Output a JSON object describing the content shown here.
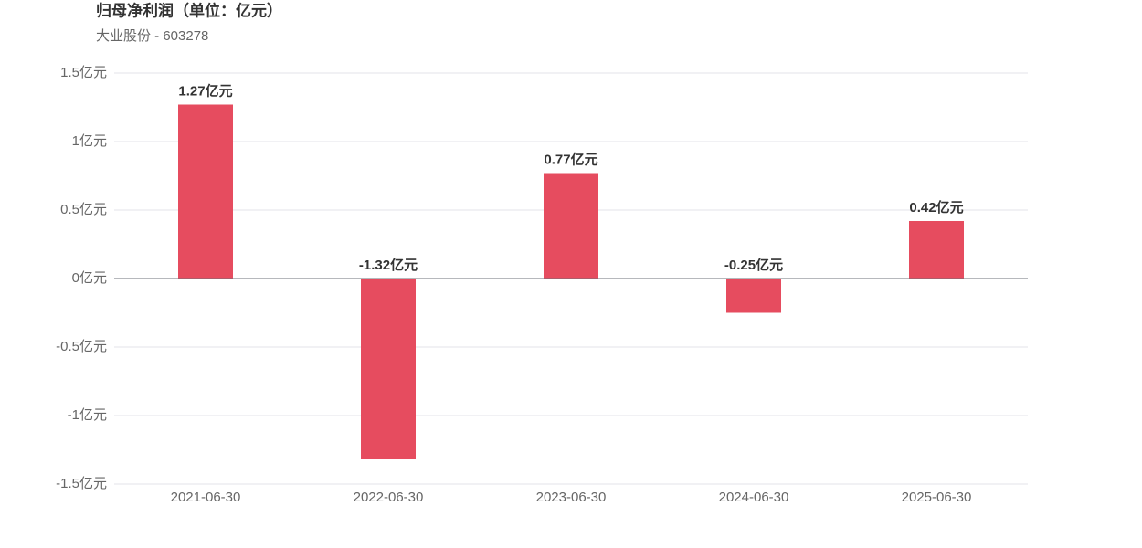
{
  "chart_data": {
    "type": "bar",
    "title": "归母净利润（单位：亿元）",
    "subtitle": "大业股份 - 603278",
    "categories": [
      "2021-06-30",
      "2022-06-30",
      "2023-06-30",
      "2024-06-30",
      "2025-06-30"
    ],
    "values": [
      1.27,
      -1.32,
      0.77,
      -0.25,
      0.42
    ],
    "value_labels": [
      "1.27亿元",
      "-1.32亿元",
      "0.77亿元",
      "-0.25亿元",
      "0.42亿元"
    ],
    "color": "#e64c5f",
    "ylim": [
      -1.5,
      1.5
    ],
    "yticks": [
      {
        "value": -1.5,
        "label": "-1.5亿元"
      },
      {
        "value": -1,
        "label": "-1亿元"
      },
      {
        "value": -0.5,
        "label": "-0.5亿元"
      },
      {
        "value": 0,
        "label": "0亿元"
      },
      {
        "value": 0.5,
        "label": "0.5亿元"
      },
      {
        "value": 1,
        "label": "1亿元"
      },
      {
        "value": 1.5,
        "label": "1.5亿元"
      }
    ],
    "grid": true
  }
}
